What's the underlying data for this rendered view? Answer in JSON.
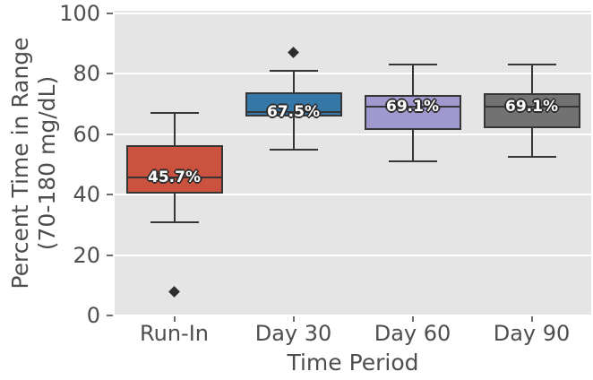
{
  "figure": {
    "background": "#ffffff",
    "plot_background": "#e5e5e5",
    "grid_color": "#ffffff",
    "line_color": "#363636",
    "text_color": "#4e4e4e",
    "median_label_color": "#ffffff",
    "median_label_outline": "#2b2b2b",
    "outlier_color": "#2d2d2d"
  },
  "chart_data": {
    "type": "box",
    "title": "",
    "xlabel": "Time Period",
    "ylabel": "Percent Time in Range (70-180 mg/dL)",
    "ylabel_lines": [
      "Percent Time in Range",
      "(70-180 mg/dL)"
    ],
    "categories": [
      "Run-In",
      "Day 30",
      "Day 60",
      "Day 90"
    ],
    "yticks": [
      0,
      20,
      40,
      60,
      80,
      100
    ],
    "ylim": [
      0,
      100.9
    ],
    "grid": true,
    "legend": false,
    "boxes": [
      {
        "category": "Run-In",
        "color": "#ca523f",
        "whisker_low": 31,
        "q1": 40.5,
        "median": 45.7,
        "q3": 56.5,
        "whisker_high": 67,
        "outliers": [
          8
        ],
        "median_label": "45.7%"
      },
      {
        "category": "Day 30",
        "color": "#3578a8",
        "whisker_low": 55,
        "q1": 66,
        "median": 67.5,
        "q3": 74,
        "whisker_high": 81,
        "outliers": [
          87
        ],
        "median_label": "67.5%"
      },
      {
        "category": "Day 60",
        "color": "#a099cf",
        "whisker_low": 51,
        "q1": 61.5,
        "median": 69.1,
        "q3": 73,
        "whisker_high": 83,
        "outliers": [],
        "median_label": "69.1%"
      },
      {
        "category": "Day 90",
        "color": "#727272",
        "whisker_low": 52.5,
        "q1": 62,
        "median": 69.1,
        "q3": 73.5,
        "whisker_high": 83,
        "outliers": [],
        "median_label": "69.1%"
      }
    ]
  }
}
